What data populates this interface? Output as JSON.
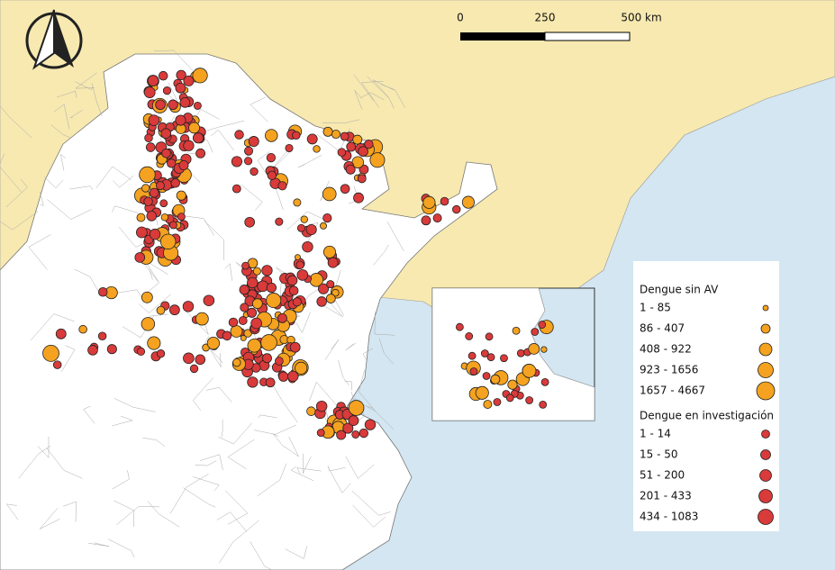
{
  "scale_bar": {
    "labels": [
      "0",
      "250",
      "500 km"
    ]
  },
  "legend": {
    "groups": [
      {
        "title": "Dengue sin AV",
        "items": [
          "1 - 85",
          "86 - 407",
          "408 - 922",
          "923 - 1656",
          "1657 - 4667"
        ]
      },
      {
        "title": "Dengue en investigación",
        "items": [
          "1 - 14",
          "15 - 50",
          "51 - 200",
          "201 - 433",
          "434 - 1083"
        ]
      }
    ]
  }
}
